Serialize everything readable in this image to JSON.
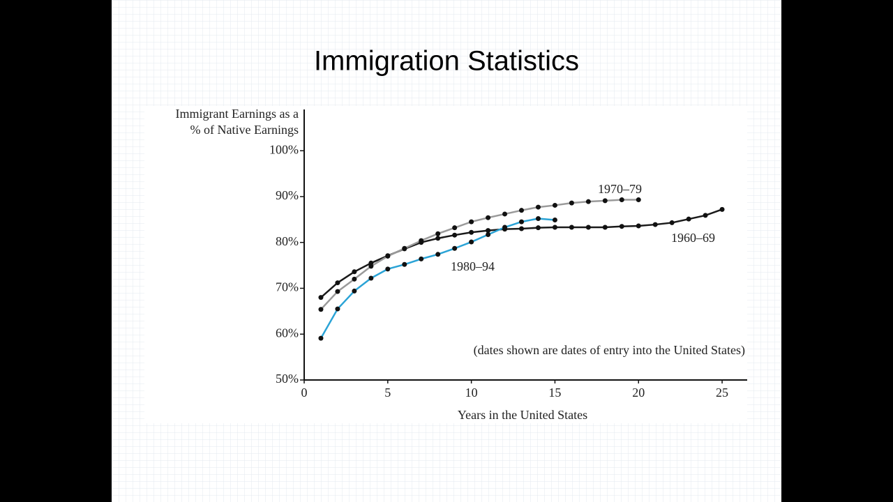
{
  "slide": {
    "title": "Immigration Statistics"
  },
  "chart_data": {
    "type": "line",
    "ylabel_lines": [
      "Immigrant Earnings as a",
      "% of Native Earnings"
    ],
    "xlabel": "Years in the United States",
    "note": "(dates shown are dates of entry into the United States)",
    "x": [
      1,
      2,
      3,
      4,
      5,
      6,
      7,
      8,
      9,
      10,
      11,
      12,
      13,
      14,
      15,
      16,
      17,
      18,
      19,
      20,
      21,
      22,
      23,
      24,
      25
    ],
    "xlim": [
      0,
      26.5
    ],
    "xticks": [
      0,
      5,
      10,
      15,
      20,
      25
    ],
    "ylim": [
      50,
      109
    ],
    "yticks": [
      {
        "value": 50,
        "label": "50%"
      },
      {
        "value": 60,
        "label": "60%"
      },
      {
        "value": 70,
        "label": "70%"
      },
      {
        "value": 80,
        "label": "80%"
      },
      {
        "value": 90,
        "label": "90%"
      },
      {
        "value": 100,
        "label": "100%"
      }
    ],
    "series": [
      {
        "name": "1960–69",
        "color": "#1a1a1a",
        "values": [
          68.0,
          71.2,
          73.6,
          75.5,
          77.1,
          78.6,
          80.0,
          80.9,
          81.6,
          82.2,
          82.6,
          82.9,
          83.0,
          83.2,
          83.3,
          83.3,
          83.3,
          83.3,
          83.5,
          83.6,
          83.9,
          84.3,
          85.1,
          85.9,
          87.2
        ]
      },
      {
        "name": "1970–79",
        "color": "#9a9a9a",
        "values": [
          65.4,
          69.3,
          72.0,
          74.8,
          77.0,
          78.7,
          80.4,
          81.9,
          83.2,
          84.5,
          85.4,
          86.2,
          87.0,
          87.7,
          88.1,
          88.6,
          88.9,
          89.1,
          89.3,
          89.3,
          null,
          null,
          null,
          null,
          null
        ]
      },
      {
        "name": "1980–94",
        "color": "#2aa3d6",
        "values": [
          59.1,
          65.5,
          69.4,
          72.2,
          74.2,
          75.2,
          76.4,
          77.4,
          78.7,
          80.1,
          81.7,
          83.3,
          84.5,
          85.2,
          84.9,
          null,
          null,
          null,
          null,
          null,
          null,
          null,
          null,
          null,
          null
        ]
      }
    ]
  }
}
